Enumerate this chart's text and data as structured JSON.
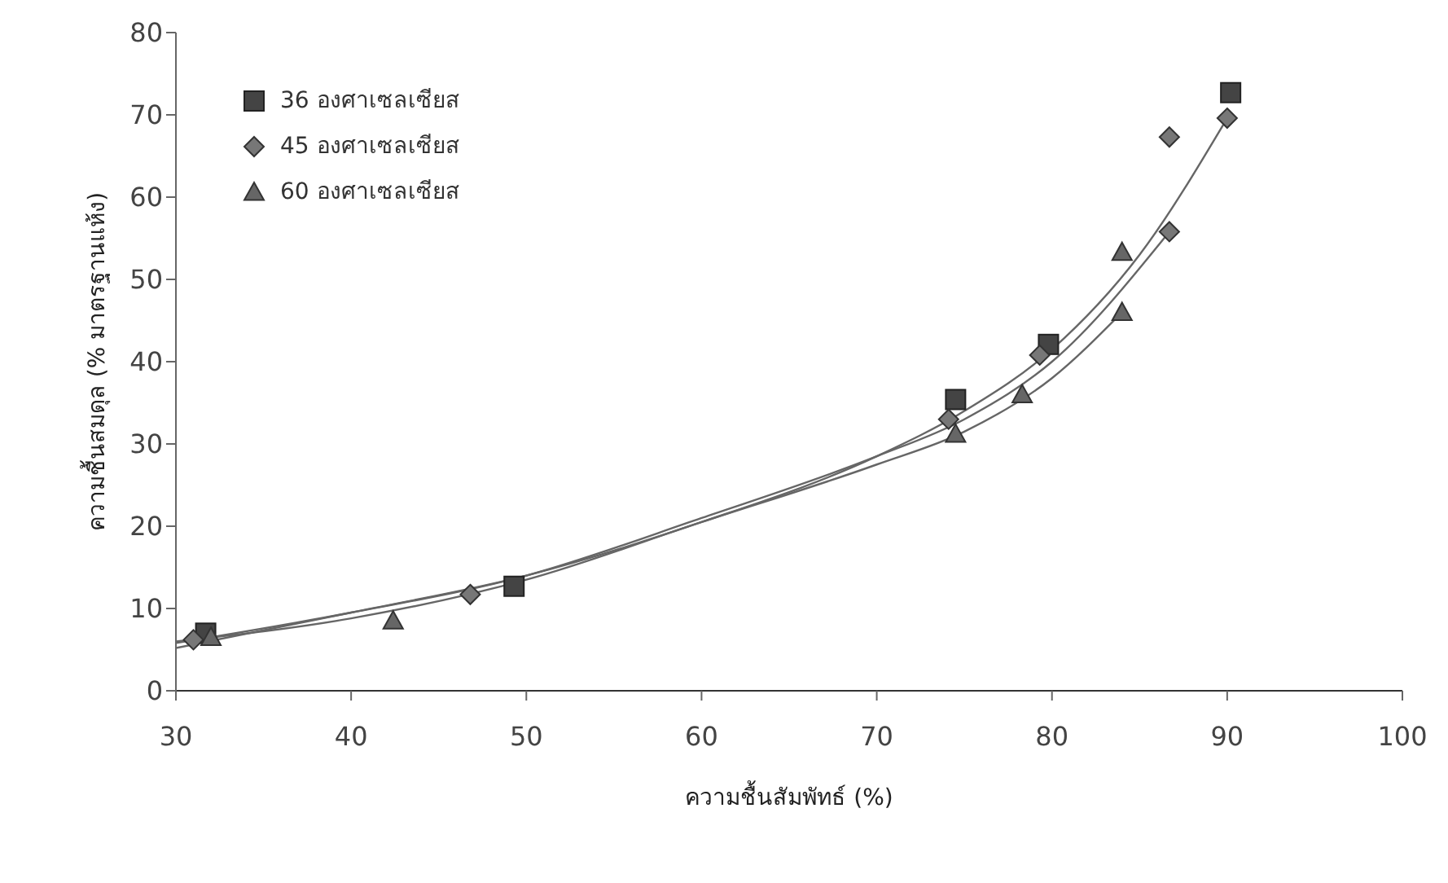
{
  "chart_data": {
    "type": "scatter",
    "xlabel": "ความชื้นสัมพัทธ์ (%)",
    "ylabel": "ความชื้นสมดุล (% มาตรฐานแห้ง)",
    "xlim": [
      30,
      100
    ],
    "xticks": [
      30,
      40,
      50,
      60,
      70,
      80,
      90,
      100
    ],
    "ylim": [
      0,
      80
    ],
    "yticks": [
      0,
      10,
      20,
      30,
      40,
      50,
      60,
      70,
      80
    ],
    "grid": false,
    "legend": "top left",
    "series": [
      {
        "name": "36 องศาเซลเซียส",
        "marker": "square",
        "color": "#444444",
        "x": [
          31.7,
          49.3,
          74.5,
          79.8,
          90.2
        ],
        "values": [
          7,
          12.7,
          35.4,
          42.1,
          72.7
        ]
      },
      {
        "name": "45 องศาเซลเซียส",
        "marker": "diamond",
        "color": "#777777",
        "x": [
          31,
          46.8,
          74.1,
          79.3,
          86.7,
          90,
          86.7
        ],
        "values": [
          6.2,
          11.7,
          33,
          40.8,
          67.3,
          69.6,
          55.8
        ]
      },
      {
        "name": "60 องศาเซลเซียส",
        "marker": "triangle",
        "color": "#666666",
        "x": [
          32,
          42.4,
          74.5,
          78.3,
          84,
          84
        ],
        "values": [
          6.5,
          8.5,
          31.2,
          36,
          53.3,
          46
        ]
      },
      {
        "type": "line",
        "marker": "none",
        "color": "#666666",
        "x": [
          30,
          40,
          50,
          60,
          70,
          75,
          80,
          85,
          90
        ],
        "values": [
          5.2,
          9.5,
          14,
          20.5,
          28.5,
          34,
          41.5,
          53,
          69.6
        ]
      },
      {
        "type": "line",
        "marker": "none",
        "color": "#666666",
        "x": [
          30,
          40,
          50,
          60,
          70,
          75,
          80,
          86.7
        ],
        "values": [
          5.8,
          9.5,
          14,
          21,
          28.5,
          33,
          40,
          55.8
        ]
      },
      {
        "type": "line",
        "marker": "none",
        "color": "#666666",
        "x": [
          30,
          40,
          50,
          60,
          70,
          75,
          80,
          84
        ],
        "values": [
          6,
          8.8,
          13.5,
          20.5,
          27.5,
          31.5,
          38,
          46
        ]
      }
    ]
  }
}
